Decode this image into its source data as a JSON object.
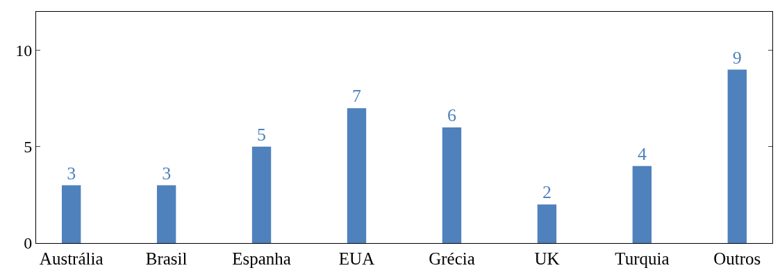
{
  "chart_data": {
    "type": "bar",
    "categories": [
      "Austrália",
      "Brasil",
      "Espanha",
      "EUA",
      "Grécia",
      "UK",
      "Turquia",
      "Outros"
    ],
    "values": [
      3,
      3,
      5,
      7,
      6,
      2,
      4,
      9
    ],
    "color": "#4f81bd",
    "ylim": [
      0,
      12
    ],
    "yticks": [
      0,
      5,
      10
    ],
    "data_labels": true,
    "grid": false,
    "legend": false
  }
}
